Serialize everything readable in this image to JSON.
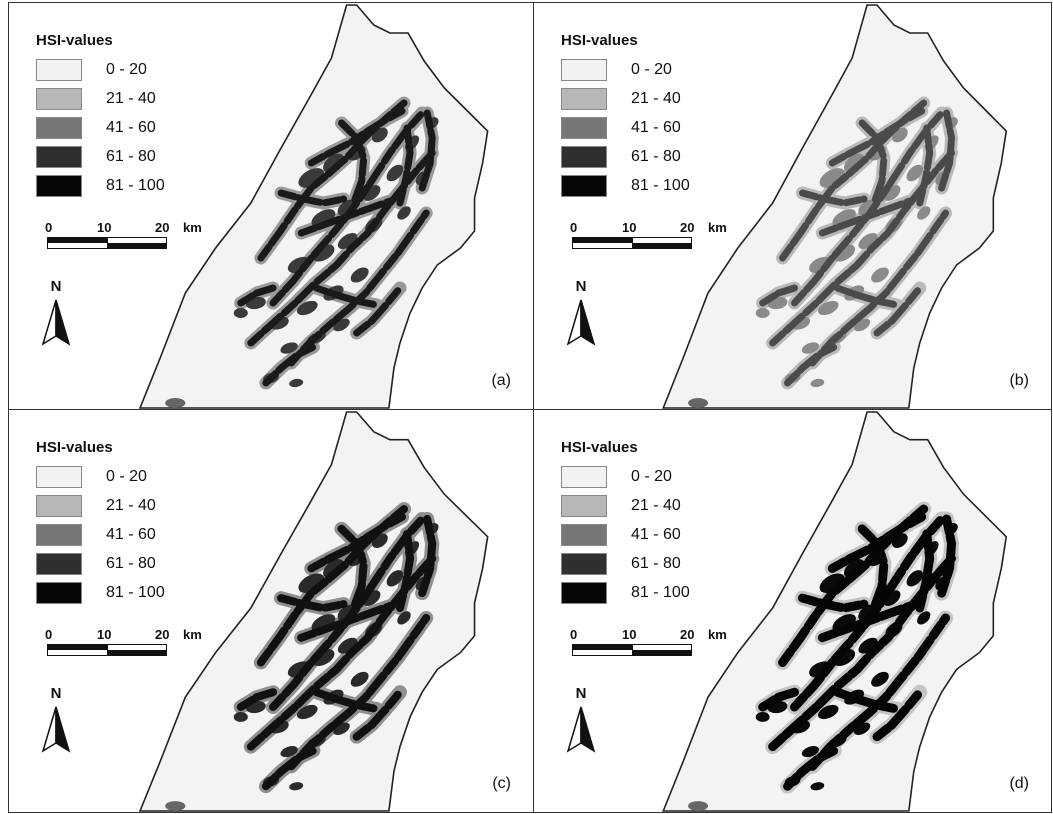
{
  "figure": {
    "panels": [
      {
        "letter": "(a)",
        "fill_scheme": "mixed-dark"
      },
      {
        "letter": "(b)",
        "fill_scheme": "mid-gray"
      },
      {
        "letter": "(c)",
        "fill_scheme": "dark-mixed"
      },
      {
        "letter": "(d)",
        "fill_scheme": "black-heavy"
      }
    ]
  },
  "legend": {
    "title": "HSI-values",
    "classes": [
      {
        "label": "0 - 20",
        "color": "#f2f2f2"
      },
      {
        "label": "21 - 40",
        "color": "#b7b7b7"
      },
      {
        "label": "41 - 60",
        "color": "#777777"
      },
      {
        "label": "61 - 80",
        "color": "#2f2f2f"
      },
      {
        "label": "81 - 100",
        "color": "#050505"
      }
    ]
  },
  "scale": {
    "tick0": "0",
    "tick1": "10",
    "tick2": "20",
    "unit": "km"
  },
  "north": {
    "label": "N"
  },
  "colors": {
    "study_area_fill": "#f3f3f3",
    "boundary": "#222222",
    "background": "#ffffff"
  }
}
